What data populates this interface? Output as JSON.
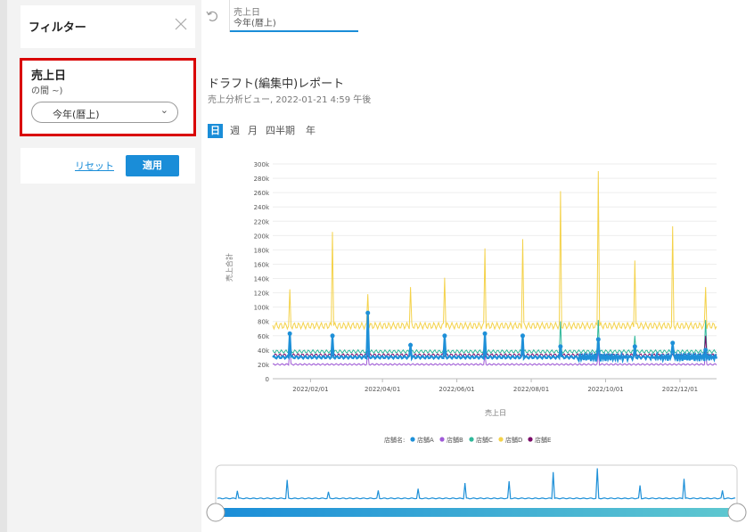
{
  "filter_panel": {
    "title": "フィルター",
    "item": {
      "label": "売上日",
      "sublabel": "の間 ~)",
      "select_value": "今年(暦上)"
    },
    "reset_label": "リセット",
    "apply_label": "適用"
  },
  "tab": {
    "line1": "売上日",
    "line2": "今年(暦上)"
  },
  "report": {
    "title": "ドラフト(編集中)レポート",
    "subtitle": "売上分析ビュー, 2022-01-21 4:59 午後"
  },
  "granularity": [
    "日",
    "週",
    "月",
    "四半期",
    "年"
  ],
  "granularity_active": "日",
  "colors": {
    "accent": "#1a8dd8",
    "storeA": "#1e90d8",
    "storeB": "#a05ad8",
    "storeC": "#2fb89a",
    "storeD": "#f4d24a",
    "storeE": "#7a0a68",
    "highlight": "#d90000"
  },
  "chart_data": {
    "type": "line",
    "xlabel": "売上日",
    "ylabel": "売上合計",
    "ylim": [
      0,
      300000
    ],
    "y_ticks": [
      "0",
      "20k",
      "40k",
      "60k",
      "80k",
      "100k",
      "120k",
      "140k",
      "160k",
      "180k",
      "200k",
      "220k",
      "240k",
      "260k",
      "280k",
      "300k"
    ],
    "x_ticks": [
      "2022/02/01",
      "2022/04/01",
      "2022/06/01",
      "2022/08/01",
      "2022/10/01",
      "2022/12/01"
    ],
    "legend_title": "店舗名:",
    "legend_position": "bottom",
    "series": [
      {
        "name": "店舗A",
        "color": "#1e90d8",
        "baseline": 30000,
        "spikes": [
          {
            "date": "2022-01-15",
            "value": 63000
          },
          {
            "date": "2022-02-19",
            "value": 60000
          },
          {
            "date": "2022-03-20",
            "value": 92000
          },
          {
            "date": "2022-04-24",
            "value": 47000
          },
          {
            "date": "2022-05-22",
            "value": 60000
          },
          {
            "date": "2022-06-24",
            "value": 63000
          },
          {
            "date": "2022-07-25",
            "value": 60000
          },
          {
            "date": "2022-08-25",
            "value": 45000
          },
          {
            "date": "2022-09-25",
            "value": 55000
          },
          {
            "date": "2022-10-25",
            "value": 45000
          },
          {
            "date": "2022-11-25",
            "value": 50000
          },
          {
            "date": "2022-12-22",
            "value": 40000
          }
        ]
      },
      {
        "name": "店舗B",
        "color": "#a05ad8",
        "baseline": 20000,
        "spikes": [
          {
            "date": "2022-01-15",
            "value": 45000
          },
          {
            "date": "2022-03-20",
            "value": 40000
          },
          {
            "date": "2022-06-24",
            "value": 35000
          },
          {
            "date": "2022-09-25",
            "value": 40000
          },
          {
            "date": "2022-12-22",
            "value": 40000
          }
        ]
      },
      {
        "name": "店舗C",
        "color": "#2fb89a",
        "baseline": 38000,
        "spikes": [
          {
            "date": "2022-08-25",
            "value": 80000
          },
          {
            "date": "2022-09-25",
            "value": 82000
          },
          {
            "date": "2022-10-25",
            "value": 60000
          },
          {
            "date": "2022-12-22",
            "value": 82000
          }
        ]
      },
      {
        "name": "店舗D",
        "color": "#f4d24a",
        "baseline": 74000,
        "spikes": [
          {
            "date": "2022-01-15",
            "value": 125000
          },
          {
            "date": "2022-02-19",
            "value": 205000
          },
          {
            "date": "2022-03-20",
            "value": 118000
          },
          {
            "date": "2022-04-24",
            "value": 128000
          },
          {
            "date": "2022-05-22",
            "value": 141000
          },
          {
            "date": "2022-06-24",
            "value": 182000
          },
          {
            "date": "2022-07-25",
            "value": 195000
          },
          {
            "date": "2022-08-25",
            "value": 262000
          },
          {
            "date": "2022-09-25",
            "value": 290000
          },
          {
            "date": "2022-10-25",
            "value": 165000
          },
          {
            "date": "2022-11-25",
            "value": 213000
          },
          {
            "date": "2022-12-22",
            "value": 128000
          }
        ]
      },
      {
        "name": "店舗E",
        "color": "#7a0a68",
        "baseline": 33000,
        "spikes": [
          {
            "date": "2022-04-24",
            "value": 50000
          },
          {
            "date": "2022-09-25",
            "value": 52000
          },
          {
            "date": "2022-12-22",
            "value": 60000
          }
        ]
      }
    ]
  }
}
